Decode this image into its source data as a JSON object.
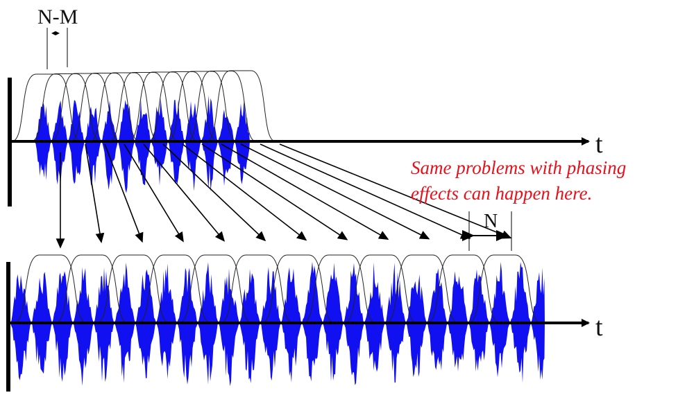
{
  "labels": {
    "overlap": "N-M",
    "hop": "N",
    "time_axis_top": "t",
    "time_axis_bottom": "t",
    "note_line1": "Same problems with phasing",
    "note_line2": "effects can happen here."
  },
  "colors": {
    "waveform": "#1010f0",
    "axis": "#000000",
    "window": "#222222",
    "note": "#e8101a"
  },
  "diagram": {
    "input_windows": 11,
    "output_windows": 12
  }
}
